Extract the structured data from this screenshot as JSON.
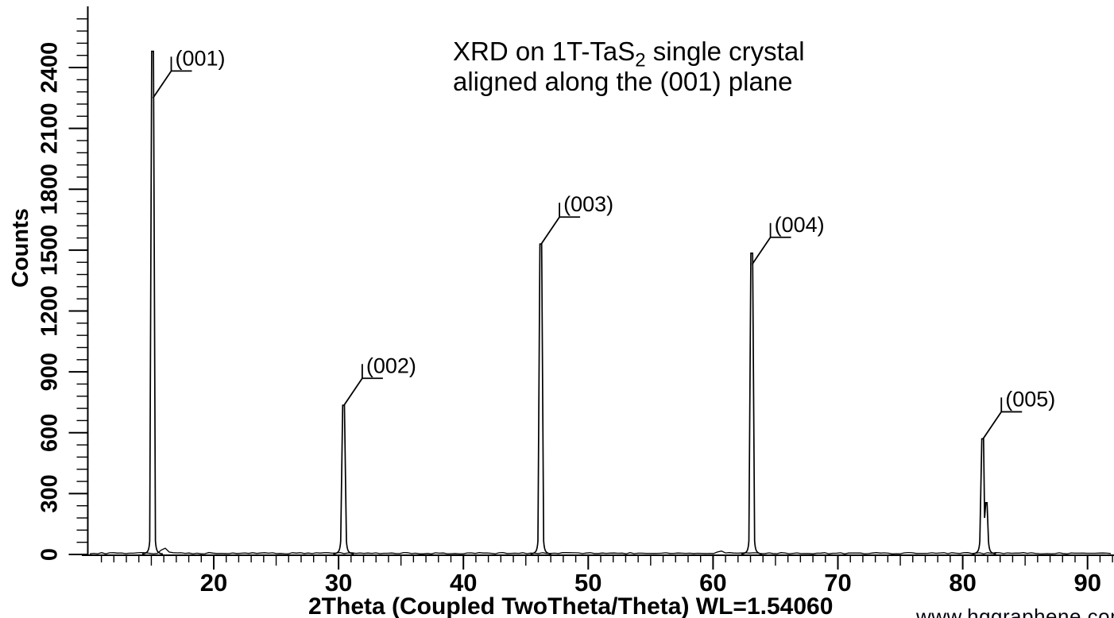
{
  "page": {
    "background": "#ffffff",
    "foreground": "#000000"
  },
  "title": {
    "line1_pre": "XRD on 1T-TaS",
    "line1_sub": "2",
    "line1_post": " single crystal",
    "line2": "aligned along the (001) plane"
  },
  "watermark": "www.hqgraphene.com",
  "chart_data": {
    "type": "line",
    "title": "XRD on 1T-TaS2 single crystal aligned along the (001) plane",
    "xlabel": "2Theta (Coupled TwoTheta/Theta) WL=1.54060",
    "ylabel": "Counts",
    "xlim": [
      10.1,
      92.2
    ],
    "ylim": [
      0,
      2700
    ],
    "x_major_ticks": [
      20,
      30,
      40,
      50,
      60,
      70,
      80,
      90
    ],
    "x_minor_step": 1,
    "x_medium_step": 5,
    "y_major_ticks": [
      0,
      300,
      600,
      900,
      1200,
      1500,
      1800,
      2100,
      2400
    ],
    "y_minor_step": 60,
    "grid": false,
    "legend": false,
    "line_color": "#000000",
    "baseline_counts": 3,
    "peaks": [
      {
        "hkl": "(001)",
        "two_theta": 15.1,
        "counts": 2480,
        "label_attach_counts": 2250
      },
      {
        "hkl": "(002)",
        "two_theta": 30.4,
        "counts": 735,
        "label_attach_counts": 735
      },
      {
        "hkl": "(003)",
        "two_theta": 46.2,
        "counts": 1530,
        "label_attach_counts": 1530
      },
      {
        "hkl": "(004)",
        "two_theta": 63.1,
        "counts": 1485,
        "label_attach_counts": 1430
      },
      {
        "hkl": "(005)",
        "two_theta": 81.6,
        "counts": 570,
        "label_attach_counts": 570,
        "ka2": {
          "two_theta": 81.9,
          "counts": 255
        }
      }
    ],
    "noise_bumps": [
      {
        "two_theta": 16.0,
        "counts": 25
      },
      {
        "two_theta": 60.5,
        "counts": 10
      }
    ]
  }
}
